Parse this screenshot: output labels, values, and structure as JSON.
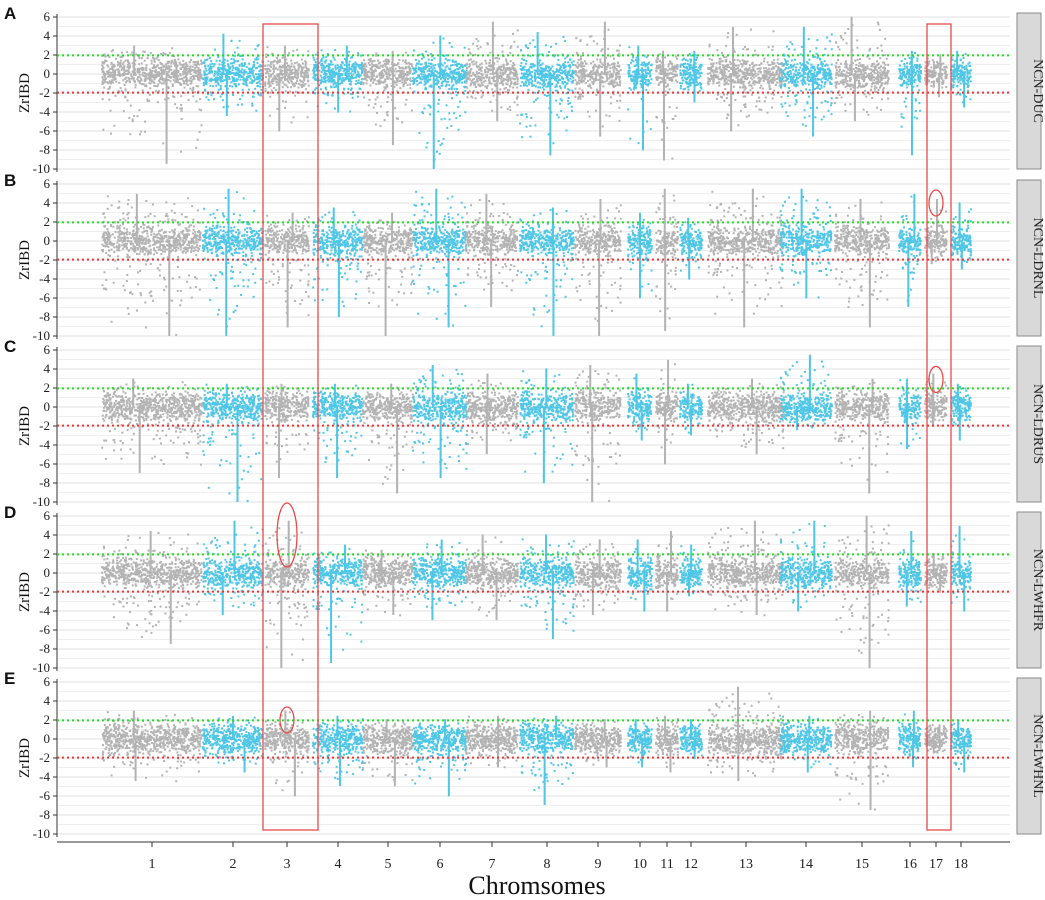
{
  "chart_data": {
    "type": "scatter",
    "x_axis_title": "Chromsomes",
    "y_axis_title": "ZrIBD",
    "y_ticks": [
      "6",
      "4",
      "2",
      "0",
      "-2",
      "-4",
      "-6",
      "-8",
      "-10"
    ],
    "ylim": [
      -10,
      6
    ],
    "chromosomes": [
      "1",
      "2",
      "3",
      "4",
      "5",
      "6",
      "7",
      "8",
      "9",
      "10",
      "11",
      "12",
      "13",
      "14",
      "15",
      "16",
      "17",
      "18"
    ],
    "chromosome_colors": [
      "#b3b3b3",
      "#4fc6e6"
    ],
    "thresholds": [
      {
        "value": 1.96,
        "color": "#22dd22",
        "style": "dotted"
      },
      {
        "value": -1.96,
        "color": "#ee3333",
        "style": "dotted"
      }
    ],
    "highlight_boxes": [
      {
        "chromosome": "3",
        "color": "#e84a4a"
      },
      {
        "chromosome": "17",
        "color": "#e84a4a"
      }
    ],
    "panels": [
      {
        "letter": "A",
        "strip_label": "NCN-DUC",
        "chrom_summary": [
          {
            "chr": "1",
            "min": -9.5,
            "max": 3.0
          },
          {
            "chr": "2",
            "min": -4.5,
            "max": 4.2
          },
          {
            "chr": "3",
            "min": -6.0,
            "max": 3.0
          },
          {
            "chr": "4",
            "min": -4.0,
            "max": 3.0
          },
          {
            "chr": "5",
            "min": -7.5,
            "max": 2.5
          },
          {
            "chr": "6",
            "min": -10.0,
            "max": 4.0
          },
          {
            "chr": "7",
            "min": -5.0,
            "max": 5.5
          },
          {
            "chr": "8",
            "min": -8.5,
            "max": 4.5
          },
          {
            "chr": "9",
            "min": -6.5,
            "max": 5.5
          },
          {
            "chr": "10",
            "min": -8.0,
            "max": 3.0
          },
          {
            "chr": "11",
            "min": -9.0,
            "max": 2.5
          },
          {
            "chr": "12",
            "min": -3.0,
            "max": 2.5
          },
          {
            "chr": "13",
            "min": -6.0,
            "max": 5.0
          },
          {
            "chr": "14",
            "min": -6.5,
            "max": 5.0
          },
          {
            "chr": "15",
            "min": -5.0,
            "max": 6.0
          },
          {
            "chr": "16",
            "min": -8.5,
            "max": 2.5
          },
          {
            "chr": "17",
            "min": -2.5,
            "max": 2.0
          },
          {
            "chr": "18",
            "min": -3.5,
            "max": 2.5
          }
        ]
      },
      {
        "letter": "B",
        "strip_label": "NCN-LDRNL",
        "chrom_summary": [
          {
            "chr": "1",
            "min": -10.0,
            "max": 5.0
          },
          {
            "chr": "2",
            "min": -10.0,
            "max": 5.5
          },
          {
            "chr": "3",
            "min": -9.0,
            "max": 3.0
          },
          {
            "chr": "4",
            "min": -8.0,
            "max": 3.5
          },
          {
            "chr": "5",
            "min": -10.0,
            "max": 3.0
          },
          {
            "chr": "6",
            "min": -9.0,
            "max": 5.5
          },
          {
            "chr": "7",
            "min": -7.0,
            "max": 5.0
          },
          {
            "chr": "8",
            "min": -10.0,
            "max": 3.5
          },
          {
            "chr": "9",
            "min": -10.0,
            "max": 4.5
          },
          {
            "chr": "10",
            "min": -6.0,
            "max": 3.0
          },
          {
            "chr": "11",
            "min": -9.5,
            "max": 5.5
          },
          {
            "chr": "12",
            "min": -4.0,
            "max": 2.5
          },
          {
            "chr": "13",
            "min": -9.0,
            "max": 5.5
          },
          {
            "chr": "14",
            "min": -6.0,
            "max": 5.5
          },
          {
            "chr": "15",
            "min": -9.0,
            "max": 4.5
          },
          {
            "chr": "16",
            "min": -7.0,
            "max": 5.0
          },
          {
            "chr": "17",
            "min": -2.5,
            "max": 4.5
          },
          {
            "chr": "18",
            "min": -3.0,
            "max": 4.0
          }
        ]
      },
      {
        "letter": "C",
        "strip_label": "NCN-LDRUS",
        "chrom_summary": [
          {
            "chr": "1",
            "min": -7.0,
            "max": 3.0
          },
          {
            "chr": "2",
            "min": -10.0,
            "max": 2.5
          },
          {
            "chr": "3",
            "min": -7.5,
            "max": 2.5
          },
          {
            "chr": "4",
            "min": -7.5,
            "max": 2.5
          },
          {
            "chr": "5",
            "min": -9.0,
            "max": 2.5
          },
          {
            "chr": "6",
            "min": -7.5,
            "max": 4.5
          },
          {
            "chr": "7",
            "min": -5.0,
            "max": 3.5
          },
          {
            "chr": "8",
            "min": -8.0,
            "max": 4.0
          },
          {
            "chr": "9",
            "min": -10.0,
            "max": 4.5
          },
          {
            "chr": "10",
            "min": -3.5,
            "max": 3.5
          },
          {
            "chr": "11",
            "min": -6.0,
            "max": 5.0
          },
          {
            "chr": "12",
            "min": -3.0,
            "max": 2.5
          },
          {
            "chr": "13",
            "min": -5.0,
            "max": 3.0
          },
          {
            "chr": "14",
            "min": -2.5,
            "max": 5.5
          },
          {
            "chr": "15",
            "min": -9.0,
            "max": 3.0
          },
          {
            "chr": "16",
            "min": -4.5,
            "max": 3.0
          },
          {
            "chr": "17",
            "min": -2.0,
            "max": 3.5
          },
          {
            "chr": "18",
            "min": -3.5,
            "max": 2.5
          }
        ]
      },
      {
        "letter": "D",
        "strip_label": "NCN-LWHFR",
        "chrom_summary": [
          {
            "chr": "1",
            "min": -7.5,
            "max": 4.5
          },
          {
            "chr": "2",
            "min": -4.5,
            "max": 5.5
          },
          {
            "chr": "3",
            "min": -10.0,
            "max": 5.5
          },
          {
            "chr": "4",
            "min": -9.5,
            "max": 3.0
          },
          {
            "chr": "5",
            "min": -4.5,
            "max": 2.5
          },
          {
            "chr": "6",
            "min": -5.0,
            "max": 3.5
          },
          {
            "chr": "7",
            "min": -5.0,
            "max": 4.0
          },
          {
            "chr": "8",
            "min": -7.0,
            "max": 4.0
          },
          {
            "chr": "9",
            "min": -4.5,
            "max": 3.5
          },
          {
            "chr": "10",
            "min": -4.0,
            "max": 3.5
          },
          {
            "chr": "11",
            "min": -4.0,
            "max": 4.5
          },
          {
            "chr": "12",
            "min": -2.5,
            "max": 3.0
          },
          {
            "chr": "13",
            "min": -4.5,
            "max": 5.5
          },
          {
            "chr": "14",
            "min": -4.0,
            "max": 5.5
          },
          {
            "chr": "15",
            "min": -10.0,
            "max": 6.0
          },
          {
            "chr": "16",
            "min": -3.5,
            "max": 4.5
          },
          {
            "chr": "17",
            "min": -2.0,
            "max": 2.0
          },
          {
            "chr": "18",
            "min": -4.0,
            "max": 5.0
          }
        ]
      },
      {
        "letter": "E",
        "strip_label": "NCN-LWHNL",
        "chrom_summary": [
          {
            "chr": "1",
            "min": -4.5,
            "max": 3.0
          },
          {
            "chr": "2",
            "min": -3.5,
            "max": 2.5
          },
          {
            "chr": "3",
            "min": -6.0,
            "max": 3.0
          },
          {
            "chr": "4",
            "min": -5.0,
            "max": 2.5
          },
          {
            "chr": "5",
            "min": -5.0,
            "max": 2.0
          },
          {
            "chr": "6",
            "min": -6.0,
            "max": 2.0
          },
          {
            "chr": "7",
            "min": -3.0,
            "max": 2.5
          },
          {
            "chr": "8",
            "min": -7.0,
            "max": 2.5
          },
          {
            "chr": "9",
            "min": -3.0,
            "max": 2.0
          },
          {
            "chr": "10",
            "min": -3.0,
            "max": 2.0
          },
          {
            "chr": "11",
            "min": -3.5,
            "max": 2.5
          },
          {
            "chr": "12",
            "min": -2.0,
            "max": 2.0
          },
          {
            "chr": "13",
            "min": -4.5,
            "max": 5.5
          },
          {
            "chr": "14",
            "min": -3.5,
            "max": 2.5
          },
          {
            "chr": "15",
            "min": -7.5,
            "max": 3.0
          },
          {
            "chr": "16",
            "min": -3.0,
            "max": 3.0
          },
          {
            "chr": "17",
            "min": -1.5,
            "max": 1.5
          },
          {
            "chr": "18",
            "min": -3.5,
            "max": 2.0
          }
        ]
      }
    ],
    "circled_peaks": [
      {
        "panel": "B",
        "chromosome": "17",
        "y": 4.0
      },
      {
        "panel": "C",
        "chromosome": "17",
        "y": 2.9
      },
      {
        "panel": "D",
        "chromosome": "3",
        "y": 4.0
      },
      {
        "panel": "E",
        "chromosome": "3",
        "y": 2.0
      }
    ]
  }
}
